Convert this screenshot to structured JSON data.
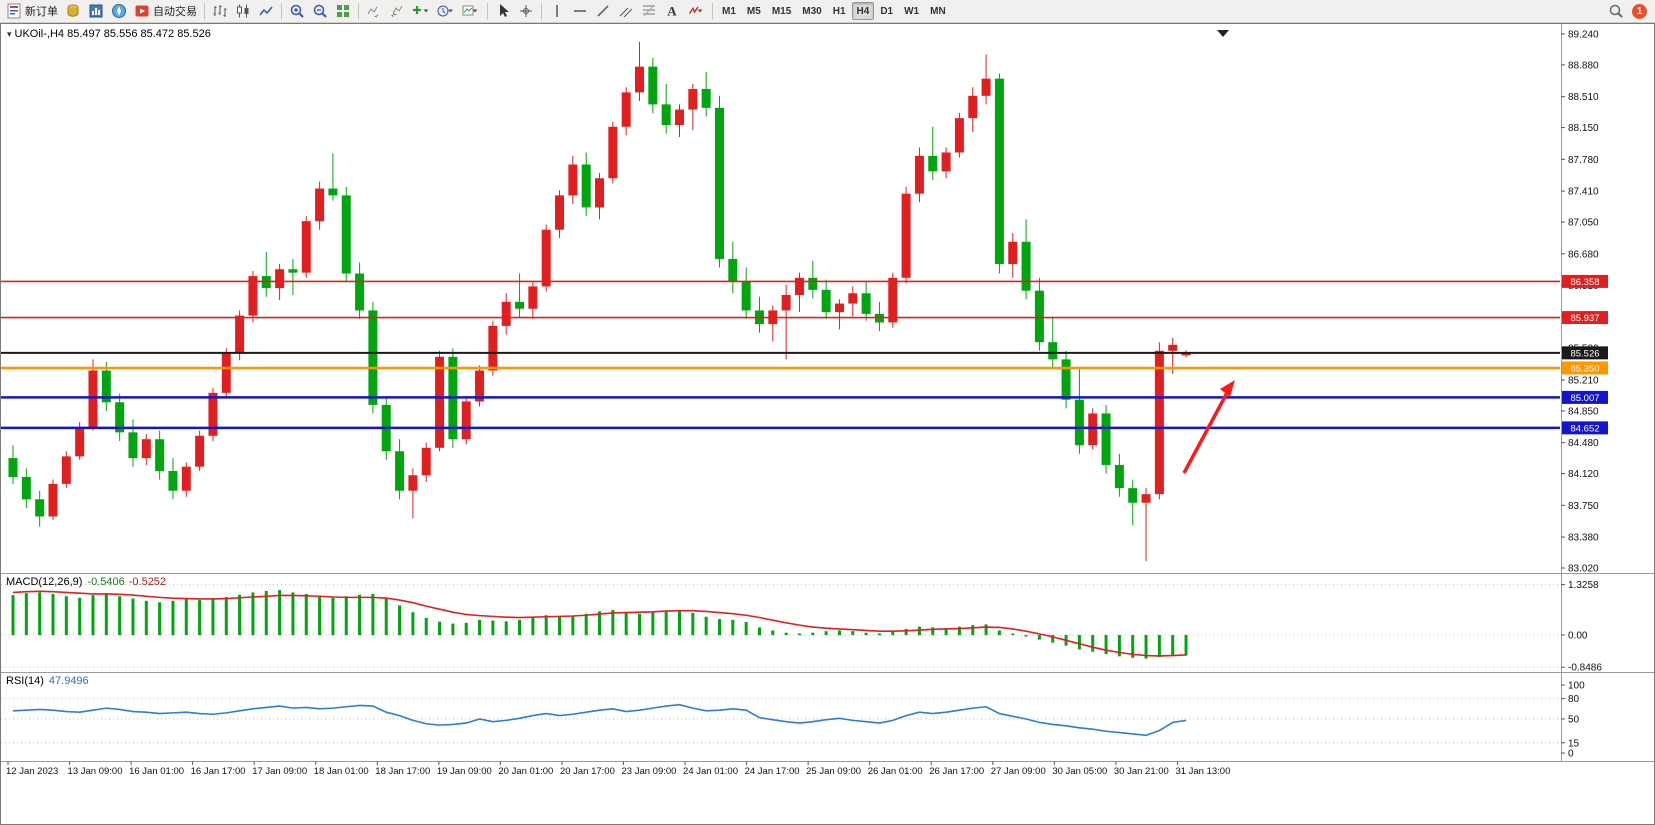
{
  "toolbar": {
    "items": [
      {
        "name": "new-order-button",
        "icon": "new-order",
        "label": "新订单"
      },
      {
        "name": "profile-button",
        "icon": "profile"
      },
      {
        "name": "market-watch-button",
        "icon": "market-watch"
      },
      {
        "name": "navigator-button",
        "icon": "navigator"
      },
      {
        "name": "autotrade-button",
        "icon": "auto-trade",
        "label": "自动交易"
      },
      {
        "sep": true
      },
      {
        "name": "bar-chart-button",
        "icon": "bar-chart"
      },
      {
        "name": "candle-chart-button",
        "icon": "candlestick-chart"
      },
      {
        "name": "line-chart-button",
        "icon": "line-chart"
      },
      {
        "sep": true
      },
      {
        "name": "zoom-in-button",
        "icon": "zoom-in"
      },
      {
        "name": "zoom-out-button",
        "icon": "zoom-out"
      },
      {
        "name": "tile-windows-button",
        "icon": "tile-windows"
      },
      {
        "sep": true
      },
      {
        "name": "auto-scroll-button",
        "icon": "auto-scroll"
      },
      {
        "name": "chart-shift-button",
        "icon": "chart-shift"
      },
      {
        "name": "add-indicator-button",
        "icon": "add-indicator",
        "wide": true
      },
      {
        "name": "periods-button",
        "icon": "periods",
        "wide": true
      },
      {
        "name": "templates-button",
        "icon": "templates",
        "wide": true
      },
      {
        "sep": true
      },
      {
        "name": "cursor-button",
        "icon": "cursor"
      },
      {
        "name": "crosshair-button",
        "icon": "crosshair"
      },
      {
        "sep": true
      },
      {
        "name": "vline-button",
        "icon": "vline"
      },
      {
        "name": "hline-button",
        "icon": "hline"
      },
      {
        "name": "trendline-button",
        "icon": "trendline"
      },
      {
        "name": "channel-button",
        "icon": "channel"
      },
      {
        "name": "fibonacci-button",
        "icon": "fibonacci"
      },
      {
        "name": "text-button",
        "icon": "text-tool"
      },
      {
        "name": "arrows-button",
        "icon": "arrows",
        "wide": true
      },
      {
        "sep": true
      }
    ],
    "timeframes": [
      "M1",
      "M5",
      "M15",
      "M30",
      "H1",
      "H4",
      "D1",
      "W1",
      "MN"
    ],
    "active_timeframe": "H4",
    "notification_count": "1"
  },
  "chart": {
    "symbol_header": "UKOil-,H4  85.497 85.556 85.472 85.526",
    "price_axis_labels": [
      "89.240",
      "88.880",
      "88.510",
      "88.150",
      "87.780",
      "87.410",
      "87.050",
      "86.680",
      "86.310",
      "85.950",
      "85.580",
      "85.210",
      "84.850",
      "84.480",
      "84.120",
      "83.750",
      "83.380",
      "83.020"
    ],
    "hlines": [
      {
        "price": "86.358",
        "color": "#e02020",
        "width": 1.6
      },
      {
        "price": "85.937",
        "color": "#e02020",
        "width": 1.6
      },
      {
        "price": "85.526",
        "color": "#1a1a1a",
        "width": 2
      },
      {
        "price": "85.350",
        "color": "#ff9500",
        "width": 2.5
      },
      {
        "price": "85.007",
        "color": "#1414cc",
        "width": 2.5
      },
      {
        "price": "84.652",
        "color": "#1414cc",
        "width": 2.5
      }
    ],
    "date_axis_labels": [
      "12 Jan 2023",
      "13 Jan 09:00",
      "16 Jan 01:00",
      "16 Jan 17:00",
      "17 Jan 09:00",
      "18 Jan 01:00",
      "18 Jan 17:00",
      "19 Jan 09:00",
      "20 Jan 01:00",
      "20 Jan 17:00",
      "23 Jan 09:00",
      "24 Jan 01:00",
      "24 Jan 17:00",
      "25 Jan 09:00",
      "26 Jan 01:00",
      "26 Jan 17:00",
      "27 Jan 09:00",
      "30 Jan 05:00",
      "30 Jan 21:00",
      "31 Jan 13:00"
    ],
    "annotation_arrow_color": "#ff1a1a"
  },
  "macd_panel": {
    "label": "MACD(12,26,9)",
    "value_main": "-0.5406",
    "value_signal": "-0.5252",
    "axis_labels": [
      "1.3258",
      "0.00",
      "-0.8486"
    ],
    "axis_values": [
      1.3258,
      0,
      -0.8486
    ]
  },
  "rsi_panel": {
    "label": "RSI(14)",
    "value": "47.9496",
    "axis_labels": [
      "100",
      "80",
      "50",
      "15",
      "0"
    ],
    "axis_values": [
      100,
      80,
      50,
      15,
      0
    ],
    "level_lines": [
      80,
      50,
      15
    ]
  },
  "chart_data": [
    {
      "type": "candlestick",
      "symbol": "UKOil-",
      "timeframe": "H4",
      "ylim": [
        83.02,
        89.24
      ],
      "up_color": "#e02020",
      "down_color": "#00a510",
      "ohlc": [
        [
          84.3,
          84.45,
          84.0,
          84.08
        ],
        [
          84.08,
          84.18,
          83.72,
          83.82
        ],
        [
          83.82,
          83.92,
          83.5,
          83.62
        ],
        [
          83.62,
          84.05,
          83.58,
          84.0
        ],
        [
          84.0,
          84.38,
          83.95,
          84.32
        ],
        [
          84.32,
          84.72,
          84.28,
          84.66
        ],
        [
          84.66,
          85.45,
          84.62,
          85.32
        ],
        [
          85.32,
          85.42,
          84.85,
          84.95
        ],
        [
          84.95,
          85.05,
          84.5,
          84.6
        ],
        [
          84.6,
          84.75,
          84.2,
          84.3
        ],
        [
          84.3,
          84.58,
          84.22,
          84.52
        ],
        [
          84.52,
          84.62,
          84.05,
          84.15
        ],
        [
          84.15,
          84.3,
          83.82,
          83.92
        ],
        [
          83.92,
          84.25,
          83.85,
          84.2
        ],
        [
          84.2,
          84.62,
          84.15,
          84.56
        ],
        [
          84.56,
          85.12,
          84.5,
          85.06
        ],
        [
          85.06,
          85.58,
          85.0,
          85.52
        ],
        [
          85.52,
          86.02,
          85.44,
          85.96
        ],
        [
          85.96,
          86.48,
          85.88,
          86.42
        ],
        [
          86.42,
          86.7,
          86.18,
          86.28
        ],
        [
          86.28,
          86.56,
          86.14,
          86.5
        ],
        [
          86.5,
          86.62,
          86.2,
          86.46
        ],
        [
          86.46,
          87.12,
          86.4,
          87.06
        ],
        [
          87.06,
          87.52,
          86.96,
          87.44
        ],
        [
          87.44,
          87.85,
          87.3,
          87.36
        ],
        [
          87.36,
          87.46,
          86.35,
          86.45
        ],
        [
          86.45,
          86.58,
          85.92,
          86.02
        ],
        [
          86.02,
          86.12,
          84.82,
          84.92
        ],
        [
          84.92,
          85.02,
          84.28,
          84.38
        ],
        [
          84.38,
          84.52,
          83.82,
          83.92
        ],
        [
          83.92,
          84.18,
          83.6,
          84.1
        ],
        [
          84.1,
          84.48,
          84.02,
          84.42
        ],
        [
          84.42,
          85.55,
          84.38,
          85.48
        ],
        [
          85.48,
          85.58,
          84.42,
          84.52
        ],
        [
          84.52,
          85.02,
          84.46,
          84.96
        ],
        [
          84.96,
          85.38,
          84.9,
          85.32
        ],
        [
          85.32,
          85.9,
          85.26,
          85.84
        ],
        [
          85.84,
          86.22,
          85.74,
          86.12
        ],
        [
          86.12,
          86.45,
          85.94,
          86.04
        ],
        [
          86.04,
          86.36,
          85.92,
          86.3
        ],
        [
          86.3,
          87.02,
          86.24,
          86.96
        ],
        [
          86.96,
          87.42,
          86.86,
          87.36
        ],
        [
          87.36,
          87.82,
          87.26,
          87.72
        ],
        [
          87.72,
          87.86,
          87.12,
          87.22
        ],
        [
          87.22,
          87.62,
          87.08,
          87.56
        ],
        [
          87.56,
          88.22,
          87.5,
          88.16
        ],
        [
          88.16,
          88.62,
          88.06,
          88.56
        ],
        [
          88.56,
          89.15,
          88.46,
          88.86
        ],
        [
          88.86,
          88.96,
          88.32,
          88.42
        ],
        [
          88.42,
          88.66,
          88.08,
          88.18
        ],
        [
          88.18,
          88.42,
          88.04,
          88.36
        ],
        [
          88.36,
          88.66,
          88.12,
          88.6
        ],
        [
          88.6,
          88.8,
          88.28,
          88.38
        ],
        [
          88.38,
          88.52,
          86.52,
          86.62
        ],
        [
          86.62,
          86.82,
          86.22,
          86.36
        ],
        [
          86.36,
          86.52,
          85.92,
          86.02
        ],
        [
          86.02,
          86.18,
          85.76,
          85.86
        ],
        [
          85.86,
          86.08,
          85.66,
          86.02
        ],
        [
          86.02,
          86.32,
          85.45,
          86.2
        ],
        [
          86.2,
          86.46,
          86.0,
          86.4
        ],
        [
          86.4,
          86.6,
          86.16,
          86.26
        ],
        [
          86.26,
          86.38,
          85.92,
          86.0
        ],
        [
          86.0,
          86.15,
          85.8,
          86.1
        ],
        [
          86.1,
          86.3,
          85.95,
          86.22
        ],
        [
          86.22,
          86.35,
          85.9,
          85.98
        ],
        [
          85.98,
          86.12,
          85.78,
          85.88
        ],
        [
          85.88,
          86.46,
          85.82,
          86.4
        ],
        [
          86.4,
          87.46,
          86.34,
          87.38
        ],
        [
          87.38,
          87.92,
          87.28,
          87.82
        ],
        [
          87.82,
          88.16,
          87.54,
          87.64
        ],
        [
          87.64,
          87.92,
          87.56,
          87.86
        ],
        [
          87.86,
          88.32,
          87.8,
          88.26
        ],
        [
          88.26,
          88.62,
          88.1,
          88.52
        ],
        [
          88.52,
          89.0,
          88.42,
          88.72
        ],
        [
          88.72,
          88.78,
          86.45,
          86.56
        ],
        [
          86.56,
          86.92,
          86.4,
          86.82
        ],
        [
          86.82,
          87.08,
          86.15,
          86.25
        ],
        [
          86.25,
          86.4,
          85.55,
          85.65
        ],
        [
          85.65,
          85.95,
          85.35,
          85.45
        ],
        [
          85.45,
          85.55,
          84.88,
          84.98
        ],
        [
          84.98,
          85.35,
          84.35,
          84.45
        ],
        [
          84.45,
          84.88,
          84.4,
          84.82
        ],
        [
          84.82,
          84.92,
          84.12,
          84.22
        ],
        [
          84.22,
          84.35,
          83.85,
          83.95
        ],
        [
          83.95,
          84.05,
          83.52,
          83.78
        ],
        [
          83.78,
          83.95,
          83.1,
          83.88
        ],
        [
          83.88,
          85.65,
          83.82,
          85.55
        ],
        [
          85.55,
          85.7,
          85.28,
          85.62
        ],
        [
          85.497,
          85.556,
          85.472,
          85.526
        ]
      ]
    },
    {
      "type": "bar",
      "title": "MACD(12,26,9)",
      "ylim": [
        -0.8486,
        1.3258
      ],
      "bar_color": "#00a510",
      "signal_color": "#e02020",
      "current_values": [
        -0.5406,
        -0.5252
      ],
      "values": [
        1.05,
        1.1,
        1.12,
        1.08,
        1.02,
        0.98,
        1.05,
        1.1,
        1.02,
        0.96,
        0.9,
        0.86,
        0.9,
        0.95,
        0.92,
        0.96,
        1.0,
        1.06,
        1.12,
        1.16,
        1.18,
        1.12,
        1.08,
        1.02,
        0.98,
        1.02,
        1.06,
        1.08,
        0.95,
        0.78,
        0.6,
        0.45,
        0.35,
        0.3,
        0.32,
        0.4,
        0.38,
        0.36,
        0.4,
        0.46,
        0.52,
        0.48,
        0.5,
        0.56,
        0.62,
        0.66,
        0.58,
        0.56,
        0.6,
        0.64,
        0.66,
        0.58,
        0.48,
        0.42,
        0.4,
        0.34,
        0.2,
        0.12,
        0.06,
        0.04,
        0.06,
        0.1,
        0.12,
        0.1,
        0.06,
        0.04,
        0.08,
        0.16,
        0.22,
        0.2,
        0.18,
        0.22,
        0.26,
        0.28,
        0.12,
        0.04,
        -0.04,
        -0.12,
        -0.2,
        -0.28,
        -0.38,
        -0.44,
        -0.5,
        -0.56,
        -0.6,
        -0.62,
        -0.58,
        -0.55,
        -0.5406
      ],
      "signal": [
        1.12,
        1.14,
        1.15,
        1.14,
        1.12,
        1.1,
        1.08,
        1.08,
        1.07,
        1.05,
        1.02,
        0.99,
        0.97,
        0.96,
        0.95,
        0.95,
        0.96,
        0.98,
        1.0,
        1.02,
        1.04,
        1.04,
        1.03,
        1.02,
        1.0,
        0.99,
        0.99,
        0.99,
        0.97,
        0.92,
        0.85,
        0.76,
        0.68,
        0.6,
        0.54,
        0.51,
        0.49,
        0.47,
        0.46,
        0.47,
        0.48,
        0.49,
        0.5,
        0.52,
        0.55,
        0.58,
        0.59,
        0.6,
        0.61,
        0.63,
        0.64,
        0.64,
        0.62,
        0.59,
        0.56,
        0.52,
        0.46,
        0.39,
        0.32,
        0.26,
        0.21,
        0.18,
        0.16,
        0.14,
        0.12,
        0.1,
        0.1,
        0.11,
        0.13,
        0.15,
        0.16,
        0.17,
        0.19,
        0.21,
        0.2,
        0.16,
        0.1,
        0.03,
        -0.05,
        -0.14,
        -0.23,
        -0.32,
        -0.4,
        -0.46,
        -0.51,
        -0.54,
        -0.55,
        -0.54,
        -0.5252
      ]
    },
    {
      "type": "line",
      "title": "RSI(14)",
      "ylim": [
        0,
        100
      ],
      "line_color": "#2a7fd4",
      "levels": [
        80,
        50,
        15
      ],
      "current_value": 47.9496,
      "values": [
        62,
        63,
        64,
        63,
        61,
        60,
        63,
        66,
        64,
        61,
        60,
        58,
        59,
        60,
        58,
        57,
        59,
        62,
        65,
        67,
        69,
        66,
        67,
        65,
        66,
        68,
        70,
        69,
        60,
        55,
        48,
        43,
        41,
        42,
        44,
        50,
        46,
        48,
        51,
        55,
        58,
        55,
        57,
        60,
        63,
        65,
        61,
        63,
        66,
        69,
        71,
        66,
        62,
        63,
        65,
        63,
        52,
        49,
        46,
        44,
        46,
        49,
        51,
        48,
        46,
        44,
        48,
        55,
        60,
        58,
        60,
        63,
        66,
        68,
        58,
        54,
        50,
        45,
        42,
        40,
        37,
        35,
        32,
        30,
        28,
        26,
        33,
        45,
        47.9496
      ]
    }
  ]
}
